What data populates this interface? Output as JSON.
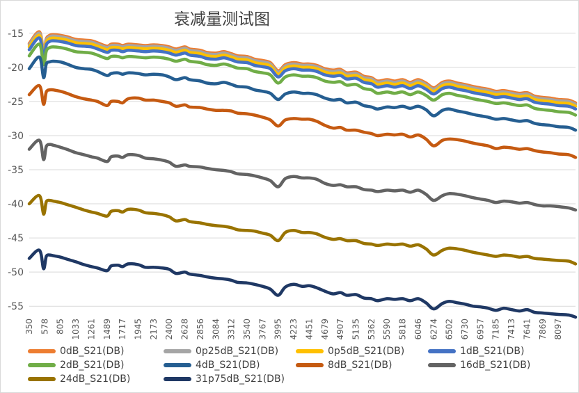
{
  "chart_data": {
    "type": "line",
    "title": "衰减量测试图",
    "xlabel": "",
    "ylabel": "",
    "ylim": [
      -56,
      -14
    ],
    "yticks": [
      -15,
      -20,
      -25,
      -30,
      -35,
      -40,
      -45,
      -50,
      -55
    ],
    "grid": "horizontal",
    "legend": "bottom",
    "x_tick_labels": [
      "350",
      "578",
      "805",
      "1033",
      "1261",
      "1489",
      "1717",
      "1945",
      "2173",
      "2400",
      "2628",
      "2856",
      "3084",
      "3312",
      "3540",
      "3767",
      "3995",
      "4223",
      "4451",
      "4679",
      "4907",
      "5135",
      "5362",
      "5590",
      "5818",
      "6046",
      "6274",
      "6502",
      "6730",
      "6957",
      "7185",
      "7413",
      "7641",
      "7869",
      "8097"
    ],
    "x": [
      350,
      500,
      560,
      600,
      650,
      700,
      805,
      900,
      1033,
      1150,
      1261,
      1350,
      1489,
      1550,
      1650,
      1717,
      1800,
      1945,
      2050,
      2173,
      2300,
      2400,
      2500,
      2628,
      2700,
      2856,
      2950,
      3084,
      3200,
      3312,
      3400,
      3540,
      3650,
      3767,
      3880,
      3995,
      4100,
      4223,
      4350,
      4451,
      4560,
      4679,
      4800,
      4907,
      5000,
      5135,
      5250,
      5362,
      5450,
      5590,
      5700,
      5818,
      5930,
      6046,
      6160,
      6274,
      6400,
      6502,
      6620,
      6730,
      6850,
      6957,
      7070,
      7185,
      7300,
      7413,
      7530,
      7641,
      7750,
      7869,
      7980,
      8097,
      8250,
      8350
    ],
    "series": [
      {
        "name": "0dB_S21(DB)",
        "color": "#ed7d31",
        "values": [
          -16.5,
          -14.8,
          -17.8,
          -15.8,
          -15.3,
          -15.2,
          -15.3,
          -15.5,
          -15.9,
          -16.0,
          -16.1,
          -16.4,
          -16.9,
          -16.6,
          -16.6,
          -16.8,
          -16.6,
          -16.7,
          -16.8,
          -16.7,
          -16.8,
          -17.0,
          -17.3,
          -17.0,
          -17.3,
          -17.5,
          -17.8,
          -17.9,
          -17.7,
          -18.0,
          -18.3,
          -18.4,
          -18.8,
          -19.0,
          -19.3,
          -20.5,
          -19.6,
          -19.3,
          -19.5,
          -19.5,
          -19.7,
          -20.2,
          -20.4,
          -20.3,
          -20.8,
          -20.7,
          -21.3,
          -21.5,
          -22.0,
          -21.8,
          -22.0,
          -21.8,
          -22.2,
          -21.8,
          -22.3,
          -23.0,
          -22.2,
          -22.0,
          -22.3,
          -22.5,
          -22.8,
          -23.0,
          -23.2,
          -23.5,
          -23.4,
          -23.6,
          -23.8,
          -23.7,
          -24.2,
          -24.4,
          -24.5,
          -24.7,
          -24.8,
          -25.2
        ]
      },
      {
        "name": "0p25dB_S21(DB)",
        "color": "#a5a5a5",
        "values": [
          -16.7,
          -15.0,
          -18.0,
          -16.0,
          -15.5,
          -15.4,
          -15.5,
          -15.7,
          -16.1,
          -16.2,
          -16.3,
          -16.6,
          -17.1,
          -16.8,
          -16.8,
          -17.0,
          -16.8,
          -16.9,
          -17.0,
          -16.9,
          -17.0,
          -17.2,
          -17.5,
          -17.2,
          -17.5,
          -17.7,
          -18.0,
          -18.1,
          -17.9,
          -18.2,
          -18.5,
          -18.6,
          -19.0,
          -19.2,
          -19.5,
          -20.7,
          -19.8,
          -19.5,
          -19.7,
          -19.7,
          -19.9,
          -20.4,
          -20.6,
          -20.5,
          -21.0,
          -20.9,
          -21.5,
          -21.7,
          -22.2,
          -22.0,
          -22.2,
          -22.0,
          -22.4,
          -22.0,
          -22.5,
          -23.2,
          -22.4,
          -22.2,
          -22.5,
          -22.7,
          -23.0,
          -23.2,
          -23.4,
          -23.7,
          -23.6,
          -23.8,
          -24.0,
          -23.9,
          -24.4,
          -24.6,
          -24.7,
          -24.9,
          -25.0,
          -25.4
        ]
      },
      {
        "name": "0p5dB_S21(DB)",
        "color": "#ffc000",
        "values": [
          -17.0,
          -15.3,
          -18.3,
          -16.3,
          -15.8,
          -15.7,
          -15.8,
          -16.0,
          -16.4,
          -16.5,
          -16.6,
          -16.9,
          -17.4,
          -17.1,
          -17.1,
          -17.3,
          -17.1,
          -17.2,
          -17.3,
          -17.2,
          -17.3,
          -17.5,
          -17.8,
          -17.5,
          -17.8,
          -18.0,
          -18.3,
          -18.4,
          -18.2,
          -18.5,
          -18.8,
          -18.9,
          -19.3,
          -19.5,
          -19.8,
          -21.0,
          -20.1,
          -19.8,
          -20.0,
          -20.0,
          -20.2,
          -20.7,
          -20.9,
          -20.8,
          -21.3,
          -21.2,
          -21.8,
          -22.0,
          -22.5,
          -22.3,
          -22.5,
          -22.3,
          -22.7,
          -22.3,
          -22.8,
          -23.5,
          -22.7,
          -22.5,
          -22.8,
          -23.0,
          -23.3,
          -23.5,
          -23.7,
          -24.0,
          -23.9,
          -24.1,
          -24.3,
          -24.2,
          -24.7,
          -24.9,
          -25.0,
          -25.2,
          -25.3,
          -25.7
        ]
      },
      {
        "name": "1dB_S21(DB)",
        "color": "#4472c4",
        "values": [
          -17.4,
          -15.7,
          -18.7,
          -16.7,
          -16.2,
          -16.1,
          -16.2,
          -16.4,
          -16.8,
          -16.9,
          -17.0,
          -17.3,
          -17.8,
          -17.5,
          -17.5,
          -17.7,
          -17.5,
          -17.6,
          -17.7,
          -17.6,
          -17.7,
          -17.9,
          -18.2,
          -17.9,
          -18.2,
          -18.4,
          -18.7,
          -18.8,
          -18.6,
          -18.9,
          -19.2,
          -19.3,
          -19.7,
          -19.9,
          -20.2,
          -21.4,
          -20.5,
          -20.2,
          -20.4,
          -20.4,
          -20.6,
          -21.1,
          -21.3,
          -21.2,
          -21.7,
          -21.6,
          -22.2,
          -22.4,
          -22.9,
          -22.7,
          -22.9,
          -22.7,
          -23.1,
          -22.7,
          -23.2,
          -23.9,
          -23.1,
          -22.9,
          -23.2,
          -23.4,
          -23.7,
          -23.9,
          -24.1,
          -24.4,
          -24.3,
          -24.5,
          -24.7,
          -24.6,
          -25.1,
          -25.3,
          -25.4,
          -25.6,
          -25.7,
          -26.1
        ]
      },
      {
        "name": "2dB_S21(DB)",
        "color": "#70ad47",
        "values": [
          -18.3,
          -16.6,
          -19.6,
          -17.6,
          -17.1,
          -17.0,
          -17.1,
          -17.3,
          -17.7,
          -17.8,
          -17.9,
          -18.2,
          -18.7,
          -18.4,
          -18.4,
          -18.6,
          -18.4,
          -18.5,
          -18.6,
          -18.5,
          -18.6,
          -18.8,
          -19.1,
          -18.8,
          -19.1,
          -19.3,
          -19.6,
          -19.7,
          -19.5,
          -19.8,
          -20.1,
          -20.2,
          -20.6,
          -20.8,
          -21.1,
          -22.3,
          -21.4,
          -21.1,
          -21.3,
          -21.3,
          -21.5,
          -22.0,
          -22.2,
          -22.1,
          -22.6,
          -22.5,
          -23.1,
          -23.3,
          -23.8,
          -23.6,
          -23.8,
          -23.6,
          -24.0,
          -23.6,
          -24.1,
          -24.8,
          -24.0,
          -23.8,
          -24.1,
          -24.3,
          -24.6,
          -24.8,
          -25.0,
          -25.3,
          -25.2,
          -25.4,
          -25.6,
          -25.5,
          -26.0,
          -26.2,
          -26.3,
          -26.5,
          -26.6,
          -27.0
        ]
      },
      {
        "name": "4dB_S21(DB)",
        "color": "#255e91",
        "values": [
          -20.2,
          -18.5,
          -21.5,
          -19.5,
          -19.2,
          -19.1,
          -19.2,
          -19.5,
          -20.0,
          -20.2,
          -20.3,
          -20.6,
          -21.2,
          -20.9,
          -20.8,
          -21.0,
          -20.8,
          -20.9,
          -21.1,
          -21.0,
          -21.1,
          -21.4,
          -21.8,
          -21.5,
          -21.8,
          -22.0,
          -22.3,
          -22.4,
          -22.2,
          -22.5,
          -22.8,
          -22.9,
          -23.3,
          -23.5,
          -23.8,
          -24.7,
          -23.9,
          -23.6,
          -23.8,
          -23.8,
          -24.0,
          -24.5,
          -24.8,
          -24.7,
          -25.2,
          -25.1,
          -25.6,
          -25.8,
          -26.1,
          -25.8,
          -25.9,
          -25.7,
          -26.0,
          -25.7,
          -26.2,
          -27.1,
          -26.3,
          -26.1,
          -26.4,
          -26.6,
          -26.9,
          -27.1,
          -27.3,
          -27.6,
          -27.5,
          -27.7,
          -27.9,
          -27.8,
          -28.2,
          -28.4,
          -28.5,
          -28.7,
          -28.8,
          -29.2
        ]
      },
      {
        "name": "8dB_S21(DB)",
        "color": "#c55a11",
        "values": [
          -24.0,
          -22.7,
          -25.4,
          -23.6,
          -23.3,
          -23.3,
          -23.5,
          -23.8,
          -24.3,
          -24.6,
          -24.8,
          -25.0,
          -25.6,
          -25.0,
          -25.0,
          -25.2,
          -24.6,
          -24.5,
          -24.8,
          -24.8,
          -25.0,
          -25.2,
          -25.7,
          -25.5,
          -25.8,
          -25.9,
          -26.1,
          -26.3,
          -26.3,
          -26.4,
          -26.7,
          -26.8,
          -27.0,
          -27.3,
          -27.7,
          -28.6,
          -27.7,
          -27.5,
          -27.6,
          -27.6,
          -27.9,
          -28.5,
          -28.9,
          -28.8,
          -29.2,
          -29.2,
          -29.5,
          -29.7,
          -30.0,
          -29.8,
          -29.9,
          -29.8,
          -30.2,
          -29.9,
          -30.5,
          -31.5,
          -30.7,
          -30.5,
          -30.6,
          -30.8,
          -31.1,
          -31.3,
          -31.5,
          -31.9,
          -31.7,
          -31.8,
          -32.0,
          -31.9,
          -32.2,
          -32.4,
          -32.5,
          -32.7,
          -32.8,
          -33.2
        ]
      },
      {
        "name": "16dB_S21(DB)",
        "color": "#636363",
        "values": [
          -32.0,
          -30.7,
          -33.5,
          -31.6,
          -31.3,
          -31.4,
          -31.7,
          -32.0,
          -32.5,
          -32.8,
          -33.1,
          -33.3,
          -33.8,
          -33.1,
          -33.0,
          -33.2,
          -32.8,
          -32.9,
          -33.3,
          -33.4,
          -33.6,
          -33.9,
          -34.5,
          -34.3,
          -34.5,
          -34.6,
          -34.8,
          -35.0,
          -35.1,
          -35.3,
          -35.6,
          -35.7,
          -35.9,
          -36.2,
          -36.6,
          -37.5,
          -36.3,
          -36.0,
          -36.2,
          -36.2,
          -36.4,
          -37.0,
          -37.3,
          -37.2,
          -37.5,
          -37.5,
          -37.9,
          -38.0,
          -38.2,
          -38.0,
          -38.1,
          -38.0,
          -38.3,
          -38.0,
          -38.6,
          -39.5,
          -38.8,
          -38.5,
          -38.6,
          -38.8,
          -39.1,
          -39.3,
          -39.5,
          -39.8,
          -39.6,
          -39.7,
          -39.9,
          -39.8,
          -40.1,
          -40.3,
          -40.3,
          -40.4,
          -40.6,
          -40.9
        ]
      },
      {
        "name": "24dB_S21(DB)",
        "color": "#997300",
        "values": [
          -40.0,
          -38.8,
          -41.5,
          -39.7,
          -39.5,
          -39.6,
          -39.8,
          -40.1,
          -40.5,
          -40.9,
          -41.2,
          -41.4,
          -41.8,
          -41.1,
          -41.0,
          -41.2,
          -40.8,
          -40.9,
          -41.3,
          -41.4,
          -41.6,
          -41.9,
          -42.5,
          -42.3,
          -42.6,
          -42.8,
          -43.0,
          -43.2,
          -43.3,
          -43.5,
          -43.8,
          -43.9,
          -44.0,
          -44.3,
          -44.6,
          -45.4,
          -44.2,
          -43.9,
          -44.2,
          -44.2,
          -44.4,
          -44.9,
          -45.2,
          -45.1,
          -45.4,
          -45.4,
          -45.8,
          -45.9,
          -46.1,
          -45.9,
          -46.0,
          -45.9,
          -46.2,
          -46.0,
          -46.6,
          -47.5,
          -46.8,
          -46.5,
          -46.6,
          -46.8,
          -47.1,
          -47.3,
          -47.5,
          -47.7,
          -47.5,
          -47.6,
          -47.8,
          -47.7,
          -48.0,
          -48.1,
          -48.2,
          -48.3,
          -48.4,
          -48.8
        ]
      },
      {
        "name": "31p75dB_S21(DB)",
        "color": "#1f3864",
        "values": [
          -48.0,
          -46.8,
          -49.5,
          -47.7,
          -47.5,
          -47.6,
          -47.8,
          -48.1,
          -48.5,
          -48.9,
          -49.2,
          -49.4,
          -49.8,
          -49.1,
          -49.0,
          -49.2,
          -48.8,
          -48.9,
          -49.3,
          -49.3,
          -49.4,
          -49.6,
          -50.2,
          -50.0,
          -50.3,
          -50.5,
          -50.7,
          -50.9,
          -51.0,
          -51.2,
          -51.5,
          -51.6,
          -51.8,
          -52.1,
          -52.5,
          -53.4,
          -52.2,
          -51.8,
          -52.1,
          -52.0,
          -52.3,
          -52.8,
          -53.2,
          -53.0,
          -53.4,
          -53.3,
          -53.8,
          -53.9,
          -54.2,
          -53.9,
          -54.0,
          -53.9,
          -54.2,
          -53.9,
          -54.5,
          -55.4,
          -54.6,
          -54.3,
          -54.5,
          -54.7,
          -55.0,
          -55.1,
          -55.3,
          -55.6,
          -55.3,
          -55.5,
          -55.7,
          -55.5,
          -55.9,
          -56.0,
          -56.1,
          -56.2,
          -56.3,
          -56.6
        ]
      }
    ]
  }
}
